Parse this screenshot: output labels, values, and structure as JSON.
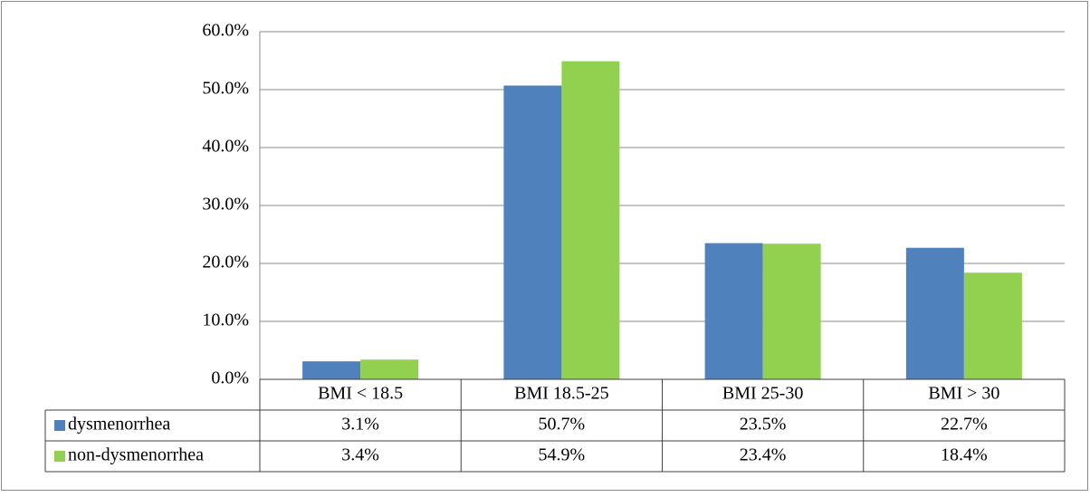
{
  "chart_data": {
    "type": "bar",
    "categories": [
      "BMI < 18.5",
      "BMI 18.5-25",
      "BMI 25-30",
      "BMI > 30"
    ],
    "series": [
      {
        "name": "dysmenorrhea",
        "color": "#4f81bd",
        "values": [
          3.1,
          50.7,
          23.5,
          22.7
        ],
        "value_labels": [
          "3.1%",
          "50.7%",
          "23.5%",
          "22.7%"
        ]
      },
      {
        "name": "non-dysmenorrhea",
        "color": "#92d050",
        "values": [
          3.4,
          54.9,
          23.4,
          18.4
        ],
        "value_labels": [
          "3.4%",
          "54.9%",
          "23.4%",
          "18.4%"
        ]
      }
    ],
    "ylim": [
      0,
      60
    ],
    "yticks": [
      {
        "value": 0,
        "label": "0.0%"
      },
      {
        "value": 10,
        "label": "10.0%"
      },
      {
        "value": 20,
        "label": "20.0%"
      },
      {
        "value": 30,
        "label": "30.0%"
      },
      {
        "value": 40,
        "label": "40.0%"
      },
      {
        "value": 50,
        "label": "50.0%"
      },
      {
        "value": 60,
        "label": "60.0%"
      }
    ],
    "grid": true,
    "data_table": true
  }
}
